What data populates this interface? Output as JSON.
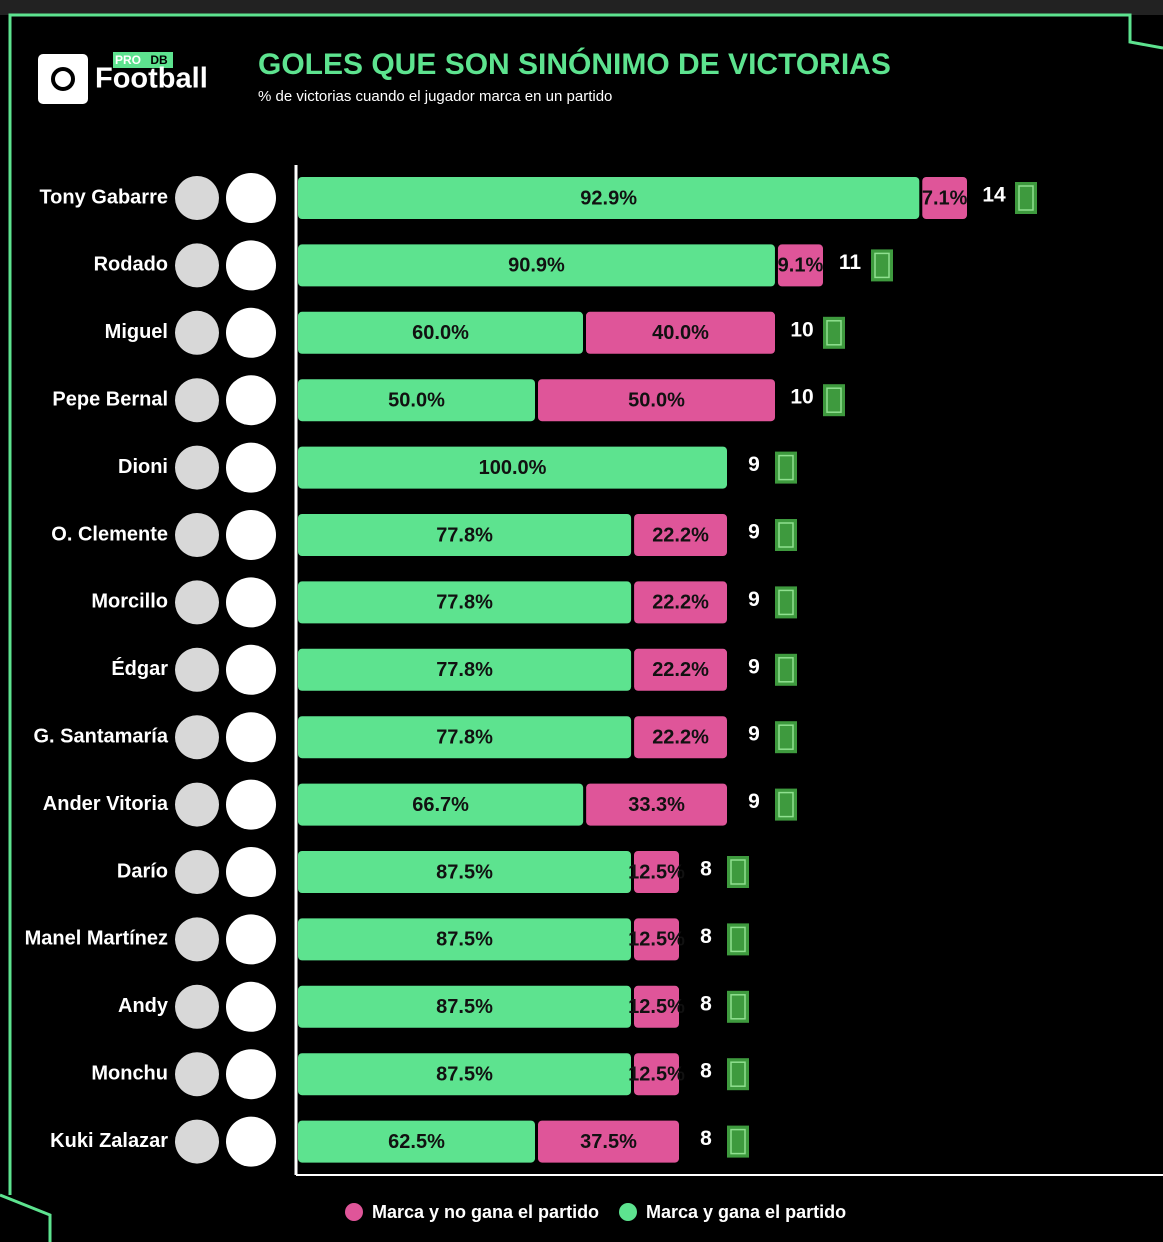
{
  "logo": {
    "pro": "PRO",
    "db": "DB",
    "name": "Football"
  },
  "chart_data": {
    "type": "bar",
    "stacked": true,
    "orientation": "horizontal",
    "title": "GOLES QUE SON SINÓNIMO DE VICTORIAS",
    "subtitle": "% de victorias cuando el jugador marca en un partido",
    "categories": [
      "Tony Gabarre",
      "Rodado",
      "Miguel",
      "Pepe Bernal",
      "Dioni",
      "O. Clemente",
      "Morcillo",
      "Édgar",
      "G. Santamaría",
      "Ander Vitoria",
      "Darío",
      "Manel Martínez",
      "Andy",
      "Monchu",
      "Kuki Zalazar"
    ],
    "matches": [
      14,
      11,
      10,
      10,
      9,
      9,
      9,
      9,
      9,
      9,
      8,
      8,
      8,
      8,
      8
    ],
    "series": [
      {
        "name": "Marca y no gana el partido",
        "color": "#df5599",
        "values": [
          7.1,
          9.1,
          40.0,
          50.0,
          0,
          22.2,
          22.2,
          22.2,
          22.2,
          33.3,
          12.5,
          12.5,
          12.5,
          12.5,
          37.5
        ],
        "value_labels": [
          "7.1%",
          "9.1%",
          "40.0%",
          "50.0%",
          null,
          "22.2%",
          "22.2%",
          "22.2%",
          "22.2%",
          "33.3%",
          "12.5%",
          "12.5%",
          "12.5%",
          "12.5%",
          "37.5%"
        ]
      },
      {
        "name": "Marca y gana el partido",
        "color": "#5de38f",
        "values": [
          92.9,
          90.9,
          60.0,
          50.0,
          100.0,
          77.8,
          77.8,
          77.8,
          77.8,
          66.7,
          87.5,
          87.5,
          87.5,
          87.5,
          62.5
        ],
        "value_labels": [
          "92.9%",
          "90.9%",
          "60.0%",
          "50.0%",
          "100.0%",
          "77.8%",
          "77.8%",
          "77.8%",
          "77.8%",
          "66.7%",
          "87.5%",
          "87.5%",
          "87.5%",
          "87.5%",
          "62.5%"
        ]
      }
    ],
    "legend": "bottom"
  }
}
